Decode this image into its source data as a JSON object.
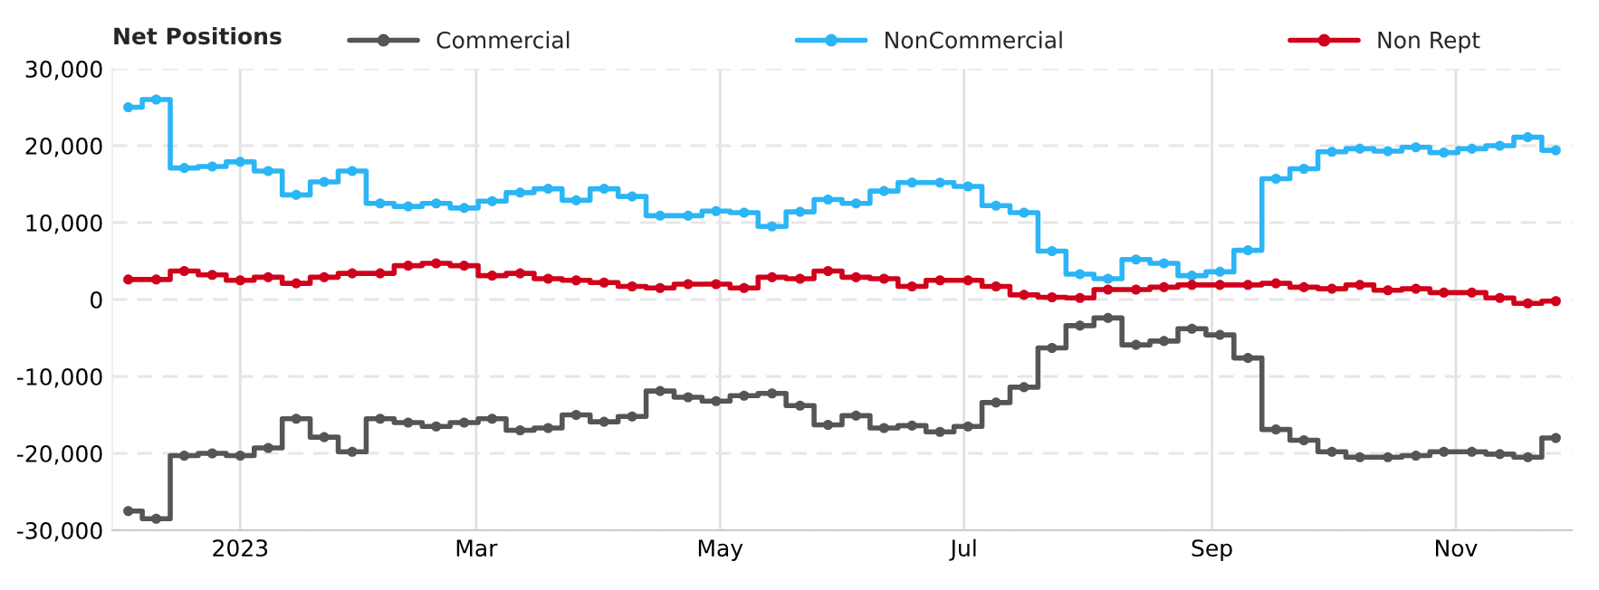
{
  "chart_data": {
    "type": "step",
    "legend_title": "Net Positions",
    "legend": "top",
    "grid": true,
    "marker": "circle",
    "line_style": "solid",
    "x": [
      "2022-12-04",
      "2022-12-11",
      "2022-12-18",
      "2022-12-25",
      "2023-01-01",
      "2023-01-08",
      "2023-01-15",
      "2023-01-22",
      "2023-01-29",
      "2023-02-05",
      "2023-02-12",
      "2023-02-19",
      "2023-02-26",
      "2023-03-05",
      "2023-03-12",
      "2023-03-19",
      "2023-03-26",
      "2023-04-02",
      "2023-04-09",
      "2023-04-16",
      "2023-04-23",
      "2023-04-30",
      "2023-05-07",
      "2023-05-14",
      "2023-05-21",
      "2023-05-28",
      "2023-06-04",
      "2023-06-11",
      "2023-06-18",
      "2023-06-25",
      "2023-07-02",
      "2023-07-09",
      "2023-07-16",
      "2023-07-23",
      "2023-07-30",
      "2023-08-06",
      "2023-08-13",
      "2023-08-20",
      "2023-08-27",
      "2023-09-03",
      "2023-09-10",
      "2023-09-17",
      "2023-09-24",
      "2023-10-01",
      "2023-10-08",
      "2023-10-15",
      "2023-10-22",
      "2023-10-29",
      "2023-11-05",
      "2023-11-12",
      "2023-11-19",
      "2023-11-26"
    ],
    "series": [
      {
        "name": "Commercial",
        "color": "#555555",
        "values": [
          -27500,
          -28500,
          -20300,
          -20000,
          -20300,
          -19300,
          -15500,
          -17900,
          -19800,
          -15500,
          -16000,
          -16500,
          -16000,
          -15500,
          -17000,
          -16700,
          -15000,
          -15900,
          -15200,
          -11900,
          -12700,
          -13200,
          -12500,
          -12200,
          -13800,
          -16300,
          -15100,
          -16700,
          -16400,
          -17200,
          -16500,
          -13400,
          -11400,
          -6300,
          -3400,
          -2400,
          -5900,
          -5400,
          -3800,
          -4600,
          -7600,
          -16900,
          -18300,
          -19800,
          -20500,
          -20500,
          -20300,
          -19800,
          -19800,
          -20100,
          -20500,
          -18000
        ]
      },
      {
        "name": "NonCommercial",
        "color": "#2cb5f5",
        "values": [
          25000,
          26000,
          17100,
          17300,
          17900,
          16700,
          13600,
          15300,
          16700,
          12500,
          12100,
          12500,
          11900,
          12800,
          13900,
          14400,
          12900,
          14400,
          13400,
          10900,
          10900,
          11500,
          11300,
          9500,
          11400,
          13000,
          12500,
          14100,
          15200,
          15200,
          14700,
          12200,
          11300,
          6300,
          3300,
          2700,
          5200,
          4700,
          3100,
          3600,
          6400,
          15700,
          17000,
          19200,
          19600,
          19300,
          19800,
          19100,
          19600,
          20000,
          21100,
          19400
        ]
      },
      {
        "name": "Non Rept",
        "color": "#d0021b",
        "values": [
          2600,
          2600,
          3700,
          3200,
          2500,
          2900,
          2100,
          2900,
          3400,
          3400,
          4400,
          4700,
          4400,
          3100,
          3400,
          2700,
          2500,
          2200,
          1700,
          1500,
          2000,
          2000,
          1500,
          2900,
          2700,
          3700,
          2900,
          2700,
          1700,
          2500,
          2500,
          1700,
          600,
          300,
          200,
          1300,
          1300,
          1600,
          1900,
          1900,
          1900,
          2100,
          1600,
          1400,
          1900,
          1200,
          1400,
          900,
          900,
          200,
          -500,
          -200
        ]
      }
    ],
    "xlim": [
      "2022-11-30",
      "2023-11-30"
    ],
    "xticks": [
      {
        "value": "2023-01-01",
        "label": "2023"
      },
      {
        "value": "2023-03-01",
        "label": "Mar"
      },
      {
        "value": "2023-05-01",
        "label": "May"
      },
      {
        "value": "2023-07-01",
        "label": "Jul"
      },
      {
        "value": "2023-09-01",
        "label": "Sep"
      },
      {
        "value": "2023-11-01",
        "label": "Nov"
      }
    ],
    "ylim": [
      -30000,
      30000
    ],
    "yticks": [
      {
        "value": -30000,
        "label": "-30,000"
      },
      {
        "value": -20000,
        "label": "-20,000"
      },
      {
        "value": -10000,
        "label": "-10,000"
      },
      {
        "value": 0,
        "label": "0"
      },
      {
        "value": 10000,
        "label": "10,000"
      },
      {
        "value": 20000,
        "label": "20,000"
      },
      {
        "value": 30000,
        "label": "30,000"
      }
    ]
  }
}
